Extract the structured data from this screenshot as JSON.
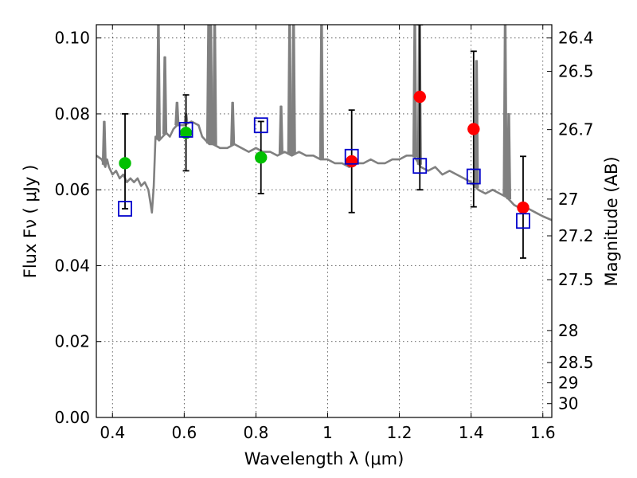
{
  "chart_data": {
    "type": "scatter",
    "xlabel": "Wavelength  λ (μm)",
    "ylabel": "Flux  Fν  ( μJy )",
    "y2label": "Magnitude (AB)",
    "xlim": [
      0.355,
      1.625
    ],
    "ylim": [
      0.0,
      0.1035
    ],
    "x_ticks": [
      0.4,
      0.6,
      0.8,
      1.0,
      1.2,
      1.4,
      1.6
    ],
    "x_tick_labels": [
      "0.4",
      "0.6",
      "0.8",
      "1",
      "1.2",
      "1.4",
      "1.6"
    ],
    "y_ticks": [
      0.0,
      0.02,
      0.04,
      0.06,
      0.08,
      0.1
    ],
    "y_tick_labels": [
      "0.00",
      "0.02",
      "0.04",
      "0.06",
      "0.08",
      "0.10"
    ],
    "y2_ticks": [
      "26.4",
      "26.5",
      "26.7",
      "27",
      "27.2",
      "27.5",
      "28",
      "28.5",
      "29",
      "30"
    ],
    "grid": true,
    "colors": {
      "model": "#808080",
      "green": "#00c000",
      "red": "#ff0000",
      "box": "#0000cc",
      "errorbar": "#000000"
    },
    "model_spectrum": {
      "x": [
        0.355,
        0.37,
        0.38,
        0.385,
        0.39,
        0.4,
        0.41,
        0.42,
        0.43,
        0.44,
        0.45,
        0.46,
        0.47,
        0.48,
        0.49,
        0.5,
        0.505,
        0.51,
        0.515,
        0.52,
        0.53,
        0.54,
        0.55,
        0.56,
        0.57,
        0.58,
        0.59,
        0.6,
        0.62,
        0.64,
        0.65,
        0.66,
        0.67,
        0.68,
        0.7,
        0.72,
        0.74,
        0.76,
        0.78,
        0.8,
        0.82,
        0.84,
        0.86,
        0.88,
        0.9,
        0.92,
        0.94,
        0.96,
        0.98,
        1.0,
        1.02,
        1.04,
        1.06,
        1.08,
        1.1,
        1.12,
        1.14,
        1.16,
        1.18,
        1.2,
        1.22,
        1.24,
        1.26,
        1.28,
        1.3,
        1.32,
        1.34,
        1.36,
        1.38,
        1.4,
        1.42,
        1.44,
        1.46,
        1.48,
        1.5,
        1.52,
        1.54,
        1.56,
        1.58,
        1.6,
        1.625
      ],
      "y": [
        0.069,
        0.068,
        0.066,
        0.068,
        0.066,
        0.064,
        0.065,
        0.063,
        0.064,
        0.062,
        0.063,
        0.062,
        0.063,
        0.061,
        0.062,
        0.06,
        0.057,
        0.054,
        0.061,
        0.074,
        0.073,
        0.074,
        0.075,
        0.074,
        0.076,
        0.077,
        0.077,
        0.077,
        0.078,
        0.077,
        0.074,
        0.073,
        0.072,
        0.072,
        0.071,
        0.071,
        0.072,
        0.071,
        0.07,
        0.071,
        0.07,
        0.07,
        0.069,
        0.07,
        0.069,
        0.07,
        0.069,
        0.069,
        0.068,
        0.068,
        0.067,
        0.067,
        0.066,
        0.067,
        0.067,
        0.068,
        0.067,
        0.067,
        0.068,
        0.068,
        0.069,
        0.069,
        0.066,
        0.065,
        0.066,
        0.064,
        0.065,
        0.064,
        0.063,
        0.062,
        0.06,
        0.059,
        0.06,
        0.059,
        0.058,
        0.056,
        0.055,
        0.055,
        0.054,
        0.053,
        0.052
      ]
    },
    "model_emission_lines": [
      {
        "x": 0.377,
        "y": 0.078
      },
      {
        "x": 0.528,
        "y": 0.1035
      },
      {
        "x": 0.546,
        "y": 0.095
      },
      {
        "x": 0.58,
        "y": 0.083
      },
      {
        "x": 0.605,
        "y": 0.08
      },
      {
        "x": 0.668,
        "y": 0.1035
      },
      {
        "x": 0.674,
        "y": 0.1035
      },
      {
        "x": 0.685,
        "y": 0.1035
      },
      {
        "x": 0.735,
        "y": 0.083
      },
      {
        "x": 0.87,
        "y": 0.082
      },
      {
        "x": 0.894,
        "y": 0.1035
      },
      {
        "x": 0.905,
        "y": 0.1035
      },
      {
        "x": 0.983,
        "y": 0.1035
      },
      {
        "x": 1.243,
        "y": 0.1035
      },
      {
        "x": 1.256,
        "y": 0.1035
      },
      {
        "x": 1.415,
        "y": 0.094
      },
      {
        "x": 1.495,
        "y": 0.1035
      },
      {
        "x": 1.505,
        "y": 0.08
      }
    ],
    "series": [
      {
        "marker": "circle",
        "color": "green",
        "points": [
          {
            "x": 0.435,
            "y": 0.067,
            "err_low": 0.055,
            "err_high": 0.08
          },
          {
            "x": 0.605,
            "y": 0.075,
            "err_low": 0.065,
            "err_high": 0.085
          },
          {
            "x": 0.814,
            "y": 0.0685,
            "err_low": 0.059,
            "err_high": 0.078
          }
        ]
      },
      {
        "marker": "circle",
        "color": "red",
        "points": [
          {
            "x": 1.067,
            "y": 0.0675,
            "err_low": 0.054,
            "err_high": 0.081
          },
          {
            "x": 1.257,
            "y": 0.0845,
            "err_low": 0.06,
            "err_high": 0.1035
          },
          {
            "x": 1.407,
            "y": 0.076,
            "err_low": 0.0555,
            "err_high": 0.0965
          },
          {
            "x": 1.545,
            "y": 0.0553,
            "err_low": 0.042,
            "err_high": 0.0688
          }
        ]
      },
      {
        "marker": "square",
        "color": "box",
        "points": [
          {
            "x": 0.435,
            "y": 0.055
          },
          {
            "x": 0.605,
            "y": 0.0758
          },
          {
            "x": 0.814,
            "y": 0.077
          },
          {
            "x": 1.067,
            "y": 0.0687
          },
          {
            "x": 1.257,
            "y": 0.0663
          },
          {
            "x": 1.407,
            "y": 0.0635
          },
          {
            "x": 1.545,
            "y": 0.0518
          }
        ]
      }
    ]
  }
}
